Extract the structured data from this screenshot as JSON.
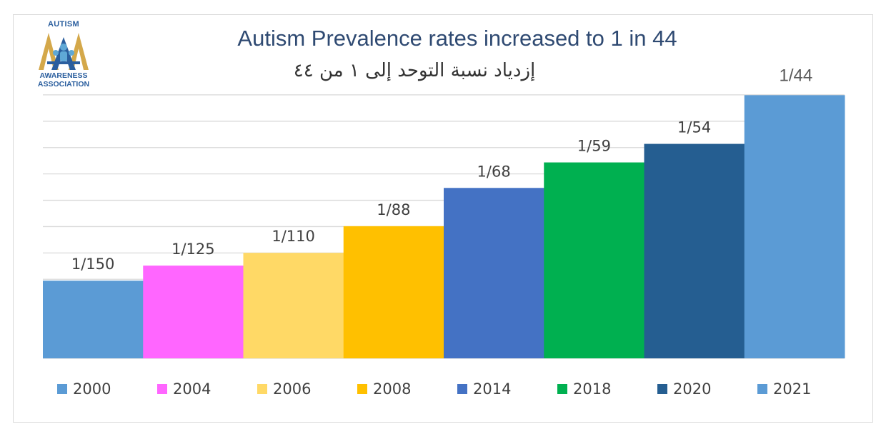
{
  "logo": {
    "top_text": "AUTISM",
    "line1": "AWARENESS",
    "line2": "ASSOCIATION",
    "colors": {
      "blue": "#2a5e9e",
      "gold": "#d4a84a",
      "light": "#5fa8d6"
    }
  },
  "chart_data": {
    "type": "bar",
    "title": "Autism Prevalence rates increased to 1 in 44",
    "subtitle": "إزدياد نسبة التوحد إلى ١ من ٤٤",
    "categories": [
      "2000",
      "2004",
      "2006",
      "2008",
      "2014",
      "2018",
      "2020",
      "2021"
    ],
    "values": [
      6.7,
      8.0,
      9.1,
      11.4,
      14.7,
      16.9,
      18.5,
      22.7
    ],
    "labels": [
      "1/150",
      "1/125",
      "1/110",
      "1/88",
      "1/68",
      "1/59",
      "1/54",
      "1/44"
    ],
    "colors": [
      "#5b9bd5",
      "#ff66ff",
      "#ffd966",
      "#ffc000",
      "#4472c4",
      "#00b050",
      "#255e91",
      "#5b9bd5"
    ],
    "ylim": [
      0,
      25
    ],
    "grid": true,
    "legend_position": "bottom",
    "xlabel": "",
    "ylabel": ""
  }
}
